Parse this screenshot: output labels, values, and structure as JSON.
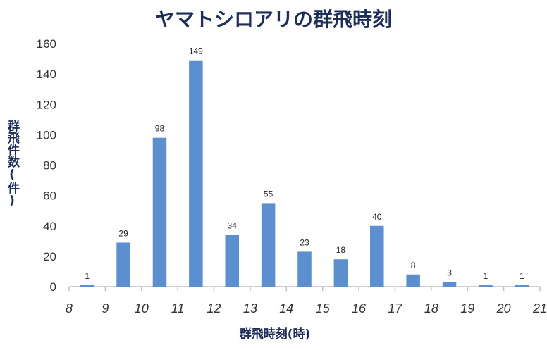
{
  "chart_data": {
    "type": "bar",
    "title": "ヤマトシロアリの群飛時刻",
    "xlabel": "群飛時刻(時)",
    "ylabel": "群飛件数(件)",
    "x_ticks": [
      8,
      9,
      10,
      11,
      12,
      13,
      14,
      15,
      16,
      17,
      18,
      19,
      20,
      21
    ],
    "y_ticks": [
      0,
      20,
      40,
      60,
      80,
      100,
      120,
      140,
      160
    ],
    "ylim": [
      0,
      160
    ],
    "xlim": [
      8,
      21
    ],
    "bars": [
      {
        "hour": 8,
        "value": 1
      },
      {
        "hour": 9,
        "value": 29
      },
      {
        "hour": 10,
        "value": 98
      },
      {
        "hour": 11,
        "value": 149
      },
      {
        "hour": 12,
        "value": 34
      },
      {
        "hour": 13,
        "value": 55
      },
      {
        "hour": 14,
        "value": 23
      },
      {
        "hour": 15,
        "value": 18
      },
      {
        "hour": 16,
        "value": 40
      },
      {
        "hour": 17,
        "value": 8
      },
      {
        "hour": 18,
        "value": 3
      },
      {
        "hour": 19,
        "value": 1
      },
      {
        "hour": 20,
        "value": 1
      }
    ],
    "bar_color": "#5b8fd0",
    "grid": false,
    "legend": "none"
  }
}
